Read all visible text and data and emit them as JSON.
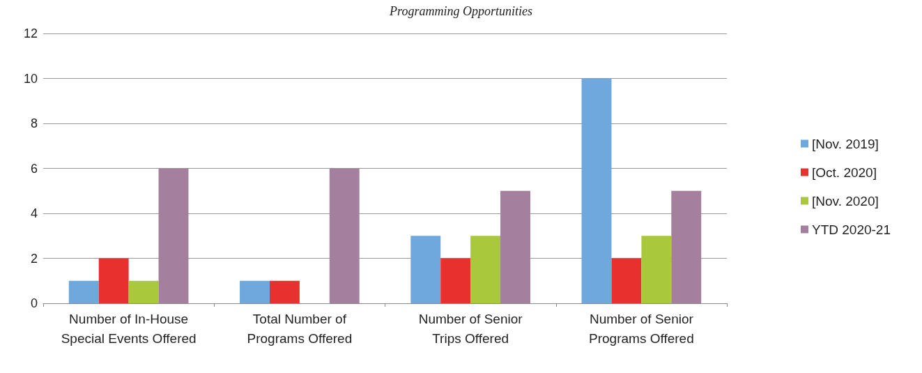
{
  "chart_data": {
    "type": "bar",
    "title": "Programming Opportunities",
    "categories": [
      "Number of In-House\nSpecial Events Offered",
      "Total Number of\nPrograms Offered",
      "Number of Senior\nTrips Offered",
      "Number of Senior\nPrograms Offered"
    ],
    "series": [
      {
        "name": "[Nov. 2019]",
        "color": "#6fa8dc",
        "values": [
          1,
          1,
          3,
          10
        ]
      },
      {
        "name": "[Oct. 2020]",
        "color": "#e8312e",
        "values": [
          2,
          1,
          2,
          2
        ]
      },
      {
        "name": "[Nov. 2020]",
        "color": "#a9c83c",
        "values": [
          1,
          0,
          3,
          3
        ]
      },
      {
        "name": "YTD 2020-21",
        "color": "#a57f9e",
        "values": [
          6,
          6,
          5,
          5
        ]
      }
    ],
    "ylim": [
      0,
      12
    ],
    "yticks": [
      0,
      2,
      4,
      6,
      8,
      10,
      12
    ],
    "grid": "y",
    "legend": "right"
  }
}
